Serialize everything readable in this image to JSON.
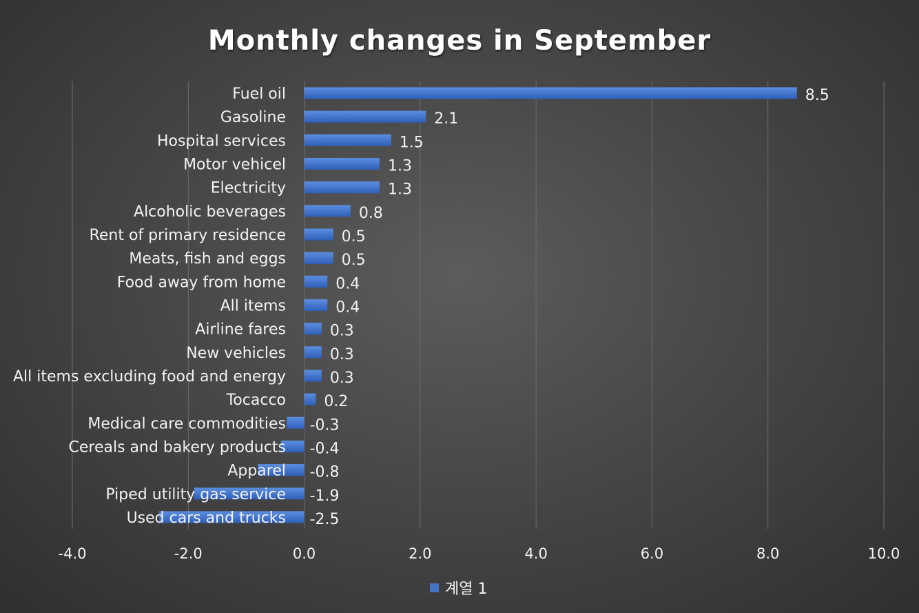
{
  "chart_data": {
    "type": "bar",
    "orientation": "horizontal",
    "title": "Monthly changes in September",
    "categories": [
      "Fuel oil",
      "Gasoline",
      "Hospital services",
      "Motor vehicel",
      "Electricity",
      "Alcoholic beverages",
      "Rent of primary residence",
      "Meats, fish and eggs",
      "Food away from home",
      "All items",
      "Airline fares",
      "New vehicles",
      "All items excluding food and energy",
      "Tocacco",
      "Medical care commodities",
      "Cereals and bakery products",
      "Apparel",
      "Piped utility gas service",
      "Used cars and trucks"
    ],
    "series": [
      {
        "name": "계열 1",
        "values": [
          8.5,
          2.1,
          1.5,
          1.3,
          1.3,
          0.8,
          0.5,
          0.5,
          0.4,
          0.4,
          0.3,
          0.3,
          0.3,
          0.2,
          -0.3,
          -0.4,
          -0.8,
          -1.9,
          -2.5
        ],
        "color": "#4472c4"
      }
    ],
    "xlim": [
      -4,
      10
    ],
    "xticks": [
      "-4.0",
      "-2.0",
      "0.0",
      "2.0",
      "4.0",
      "6.0",
      "8.0",
      "10.0"
    ],
    "grid": true,
    "data_labels": true,
    "legend": "bottom",
    "xlabel": "",
    "ylabel": ""
  }
}
